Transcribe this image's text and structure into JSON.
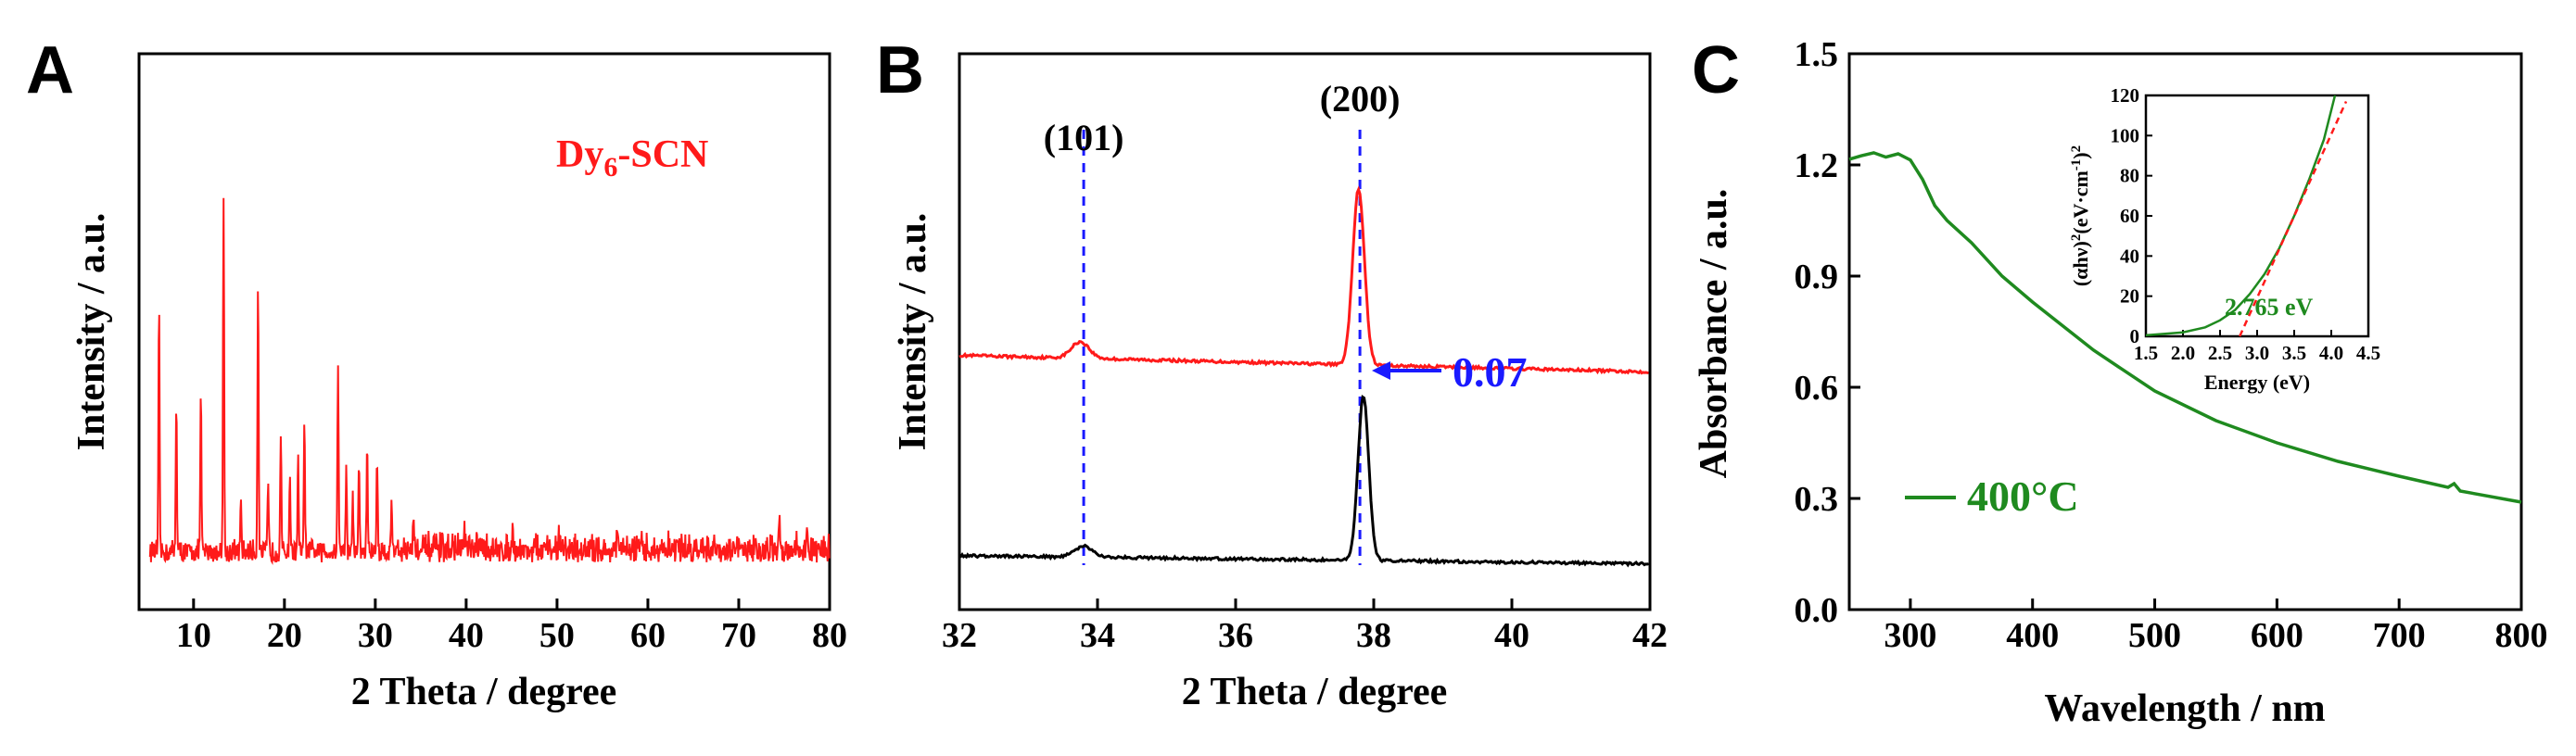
{
  "chart_data": [
    {
      "panel": "A",
      "type": "line",
      "xlabel": "2 Theta / degree",
      "ylabel": "Intensity / a.u.",
      "xlim": [
        4,
        80
      ],
      "ylim": [
        0,
        10
      ],
      "xticks": [
        10,
        20,
        30,
        40,
        50,
        60,
        70,
        80
      ],
      "series": [
        {
          "name": "Dy6-SCN",
          "color": "#ff1a1a",
          "legend_main": "Dy",
          "legend_sub": "6",
          "legend_suffix": "-SCN",
          "baseline": 0.9,
          "peaks": [
            [
              6.2,
              4.4
            ],
            [
              8.1,
              2.8
            ],
            [
              10.8,
              2.9
            ],
            [
              13.3,
              6.5
            ],
            [
              15.2,
              0.8
            ],
            [
              17.1,
              5.0
            ],
            [
              18.2,
              1.2
            ],
            [
              19.6,
              2.1
            ],
            [
              20.6,
              1.4
            ],
            [
              21.5,
              1.7
            ],
            [
              22.2,
              2.3
            ],
            [
              25.9,
              3.5
            ],
            [
              26.8,
              1.5
            ],
            [
              27.5,
              1.0
            ],
            [
              28.2,
              1.6
            ],
            [
              29.1,
              2.0
            ],
            [
              30.2,
              1.8
            ],
            [
              31.8,
              0.9
            ],
            [
              34.2,
              0.7
            ],
            [
              39.8,
              0.4
            ],
            [
              45.1,
              0.4
            ],
            [
              50.2,
              0.3
            ],
            [
              56.6,
              0.3
            ],
            [
              63.2,
              0.35
            ],
            [
              66.0,
              0.3
            ],
            [
              74.5,
              0.35
            ],
            [
              77.5,
              0.35
            ]
          ]
        }
      ]
    },
    {
      "panel": "B",
      "type": "line",
      "xlabel": "2 Theta / degree",
      "ylabel": "Intensity / a.u.",
      "xlim": [
        32,
        42
      ],
      "ylim": [
        0,
        10
      ],
      "xticks": [
        32,
        34,
        36,
        38,
        40,
        42
      ],
      "series": [
        {
          "name": "upper (red)",
          "color": "#ff1a1a",
          "baseline": 4.5,
          "slope": -0.03,
          "peaks": [
            [
              33.75,
              0.3,
              0.18
            ],
            [
              37.78,
              3.2,
              0.12
            ]
          ]
        },
        {
          "name": "lower (black)",
          "color": "#000000",
          "baseline": 0.85,
          "slope": -0.015,
          "peaks": [
            [
              33.8,
              0.2,
              0.18
            ],
            [
              37.85,
              3.0,
              0.11
            ]
          ]
        }
      ],
      "reference_lines": [
        {
          "label": "(101)",
          "x": 33.8
        },
        {
          "label": "(200)",
          "x": 37.8
        }
      ],
      "annotation": {
        "text": "0.07",
        "color": "#1a1aff"
      }
    },
    {
      "panel": "C",
      "type": "line",
      "xlabel": "Wavelength / nm",
      "ylabel": "Absorbance / a.u.",
      "xlim": [
        250,
        800
      ],
      "ylim": [
        0.0,
        1.5
      ],
      "xticks": [
        300,
        400,
        500,
        600,
        700,
        800
      ],
      "yticks": [
        "0.0",
        "0.3",
        "0.6",
        "0.9",
        "1.2",
        "1.5"
      ],
      "series": [
        {
          "name": "400°C",
          "color": "#1f8a1f",
          "points": [
            [
              250,
              1.22
            ],
            [
              260,
              1.22
            ],
            [
              270,
              1.235
            ],
            [
              280,
              1.22
            ],
            [
              290,
              1.225
            ],
            [
              300,
              1.21
            ],
            [
              310,
              1.16
            ],
            [
              320,
              1.09
            ],
            [
              330,
              1.05
            ],
            [
              350,
              0.99
            ],
            [
              375,
              0.9
            ],
            [
              400,
              0.83
            ],
            [
              450,
              0.7
            ],
            [
              500,
              0.59
            ],
            [
              550,
              0.51
            ],
            [
              600,
              0.45
            ],
            [
              650,
              0.4
            ],
            [
              700,
              0.36
            ],
            [
              740,
              0.33
            ],
            [
              745,
              0.34
            ],
            [
              750,
              0.32
            ],
            [
              800,
              0.29
            ]
          ]
        }
      ],
      "inset": {
        "type": "line",
        "xlabel": "Energy (eV)",
        "ylabel_parts": [
          "(αhν)",
          "2",
          "(eV·cm",
          "-1",
          ")",
          "2"
        ],
        "xlim": [
          1.5,
          4.5
        ],
        "ylim": [
          0,
          120
        ],
        "xticks": [
          "1.5",
          "2.0",
          "2.5",
          "3.0",
          "3.5",
          "4.0",
          "4.5"
        ],
        "yticks": [
          0,
          20,
          40,
          60,
          80,
          100,
          120
        ],
        "curve": [
          [
            1.5,
            0.5
          ],
          [
            2.0,
            2.0
          ],
          [
            2.3,
            4.5
          ],
          [
            2.5,
            8.0
          ],
          [
            2.7,
            13.0
          ],
          [
            2.9,
            21.0
          ],
          [
            3.1,
            31.0
          ],
          [
            3.3,
            44.0
          ],
          [
            3.5,
            60.0
          ],
          [
            3.7,
            78.0
          ],
          [
            3.9,
            98.0
          ],
          [
            4.05,
            120.0
          ]
        ],
        "fit_line": [
          [
            2.765,
            0
          ],
          [
            4.2,
            117
          ]
        ],
        "curve_color": "#1f8a1f",
        "fit_color": "#ff1a1a",
        "annotation": "2.765 eV"
      }
    }
  ],
  "panels": {
    "a": {
      "letter": "A"
    },
    "b": {
      "letter": "B"
    },
    "c": {
      "letter": "C"
    }
  }
}
